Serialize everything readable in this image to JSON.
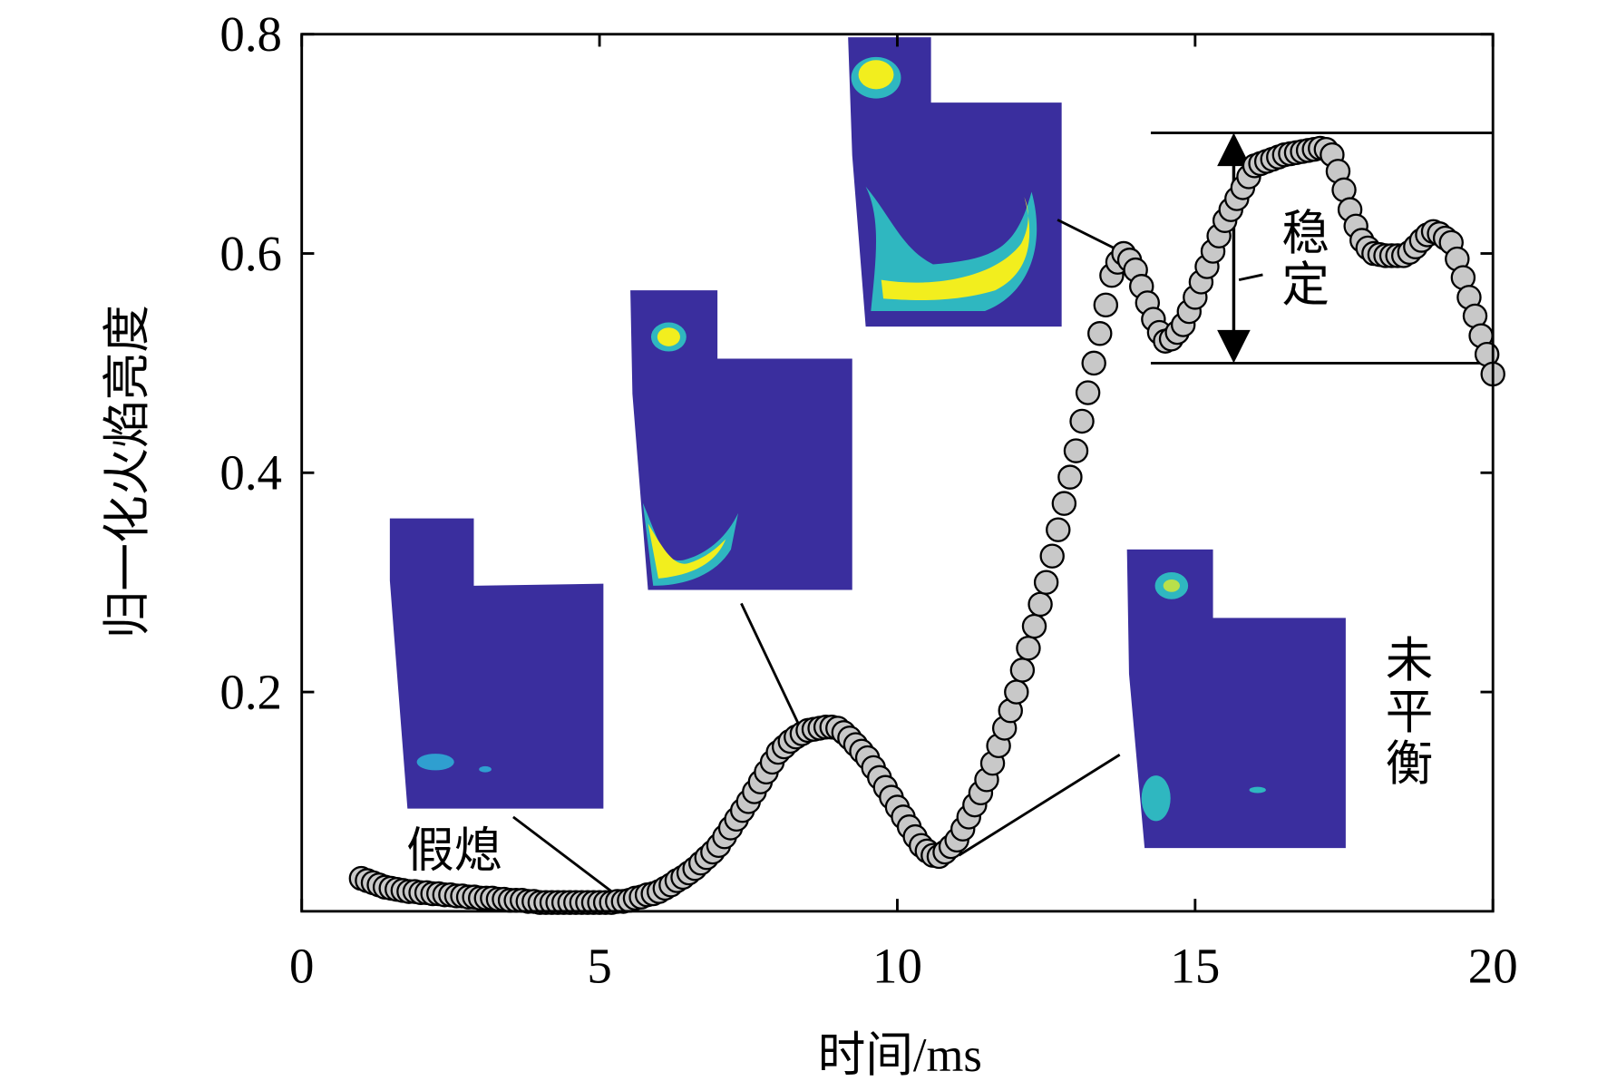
{
  "chart_data": {
    "type": "scatter",
    "xlabel": "时间/ms",
    "ylabel": "归一化火焰亮度",
    "xlim": [
      0,
      20
    ],
    "xticks": [
      0,
      5,
      10,
      15,
      20
    ],
    "ylim": [
      0,
      0.8
    ],
    "yticks": [
      0.2,
      0.4,
      0.6,
      0.8
    ],
    "marker_color": "#c8c8c8",
    "annotations": [
      {
        "text": "假熄"
      },
      {
        "text": "稳定",
        "band": [
          0.5,
          0.71
        ]
      },
      {
        "text": "未平衡"
      }
    ],
    "x": [
      1.0,
      1.1,
      1.2,
      1.3,
      1.4,
      1.5,
      1.6,
      1.7,
      1.8,
      1.9,
      2.0,
      2.1,
      2.2,
      2.3,
      2.4,
      2.5,
      2.6,
      2.7,
      2.8,
      2.9,
      3.0,
      3.1,
      3.2,
      3.3,
      3.4,
      3.5,
      3.6,
      3.7,
      3.8,
      3.9,
      4.0,
      4.1,
      4.2,
      4.3,
      4.4,
      4.5,
      4.6,
      4.7,
      4.8,
      4.9,
      5.0,
      5.1,
      5.2,
      5.3,
      5.4,
      5.5,
      5.6,
      5.7,
      5.8,
      5.9,
      6.0,
      6.1,
      6.2,
      6.3,
      6.4,
      6.5,
      6.6,
      6.7,
      6.8,
      6.9,
      7.0,
      7.1,
      7.2,
      7.3,
      7.4,
      7.5,
      7.6,
      7.7,
      7.8,
      7.9,
      8.0,
      8.1,
      8.2,
      8.3,
      8.4,
      8.5,
      8.6,
      8.7,
      8.8,
      8.9,
      9.0,
      9.1,
      9.2,
      9.3,
      9.4,
      9.5,
      9.6,
      9.7,
      9.8,
      9.9,
      10.0,
      10.1,
      10.2,
      10.3,
      10.4,
      10.5,
      10.6,
      10.7,
      10.8,
      10.9,
      11.0,
      11.1,
      11.2,
      11.3,
      11.4,
      11.5,
      11.6,
      11.7,
      11.8,
      11.9,
      12.0,
      12.1,
      12.2,
      12.3,
      12.4,
      12.5,
      12.6,
      12.7,
      12.8,
      12.9,
      13.0,
      13.1,
      13.2,
      13.3,
      13.4,
      13.5,
      13.6,
      13.7,
      13.8,
      13.9,
      14.0,
      14.1,
      14.2,
      14.3,
      14.4,
      14.5,
      14.6,
      14.7,
      14.8,
      14.9,
      15.0,
      15.1,
      15.2,
      15.3,
      15.4,
      15.5,
      15.6,
      15.7,
      15.8,
      15.9,
      16.0,
      16.1,
      16.2,
      16.3,
      16.4,
      16.5,
      16.6,
      16.7,
      16.8,
      16.9,
      17.0,
      17.1,
      17.2,
      17.3,
      17.4,
      17.5,
      17.6,
      17.7,
      17.8,
      17.9,
      18.0,
      18.1,
      18.2,
      18.3,
      18.4,
      18.5,
      18.6,
      18.7,
      18.8,
      18.9,
      19.0,
      19.1,
      19.2,
      19.3,
      19.4,
      19.5,
      19.6,
      19.7,
      19.8,
      19.9,
      20.0
    ],
    "values": [
      0.03,
      0.028,
      0.026,
      0.024,
      0.022,
      0.021,
      0.02,
      0.019,
      0.018,
      0.018,
      0.017,
      0.017,
      0.016,
      0.016,
      0.015,
      0.015,
      0.014,
      0.014,
      0.013,
      0.013,
      0.012,
      0.012,
      0.012,
      0.011,
      0.011,
      0.01,
      0.01,
      0.01,
      0.009,
      0.009,
      0.008,
      0.008,
      0.008,
      0.008,
      0.008,
      0.008,
      0.008,
      0.008,
      0.008,
      0.008,
      0.008,
      0.008,
      0.008,
      0.009,
      0.009,
      0.01,
      0.012,
      0.013,
      0.015,
      0.016,
      0.018,
      0.021,
      0.024,
      0.028,
      0.031,
      0.035,
      0.039,
      0.044,
      0.049,
      0.054,
      0.06,
      0.068,
      0.076,
      0.084,
      0.092,
      0.1,
      0.109,
      0.118,
      0.127,
      0.136,
      0.145,
      0.15,
      0.155,
      0.159,
      0.162,
      0.165,
      0.166,
      0.167,
      0.168,
      0.168,
      0.167,
      0.163,
      0.158,
      0.152,
      0.146,
      0.14,
      0.131,
      0.122,
      0.113,
      0.104,
      0.095,
      0.086,
      0.077,
      0.068,
      0.06,
      0.055,
      0.051,
      0.05,
      0.054,
      0.059,
      0.065,
      0.075,
      0.086,
      0.097,
      0.108,
      0.12,
      0.135,
      0.151,
      0.167,
      0.183,
      0.2,
      0.22,
      0.24,
      0.26,
      0.28,
      0.3,
      0.324,
      0.348,
      0.372,
      0.396,
      0.42,
      0.447,
      0.473,
      0.5,
      0.527,
      0.553,
      0.58,
      0.592,
      0.6,
      0.594,
      0.585,
      0.57,
      0.555,
      0.54,
      0.528,
      0.52,
      0.522,
      0.528,
      0.535,
      0.547,
      0.56,
      0.574,
      0.588,
      0.602,
      0.616,
      0.63,
      0.64,
      0.65,
      0.66,
      0.67,
      0.68,
      0.682,
      0.684,
      0.686,
      0.688,
      0.69,
      0.691,
      0.692,
      0.693,
      0.694,
      0.695,
      0.696,
      0.695,
      0.69,
      0.675,
      0.658,
      0.64,
      0.625,
      0.612,
      0.605,
      0.6,
      0.599,
      0.598,
      0.598,
      0.598,
      0.598,
      0.601,
      0.606,
      0.612,
      0.617,
      0.62,
      0.618,
      0.614,
      0.61,
      0.595,
      0.578,
      0.56,
      0.543,
      0.525,
      0.508,
      0.49
    ]
  }
}
